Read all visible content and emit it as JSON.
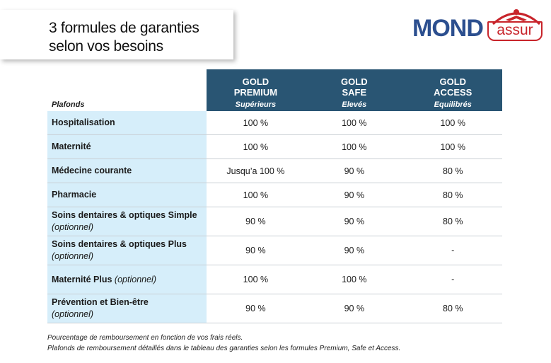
{
  "title": {
    "line1": "3 formules de garanties",
    "line2": "selon vos besoins"
  },
  "logo": {
    "part1": "MOND",
    "part2": "assur",
    "brand_blue": "#2c4f8f",
    "brand_red": "#c8242b"
  },
  "table": {
    "plafonds_label": "Plafonds",
    "columns": [
      {
        "line1": "GOLD",
        "line2": "PREMIUM",
        "level": "Supérieurs"
      },
      {
        "line1": "GOLD",
        "line2": "SAFE",
        "level": "Elevés"
      },
      {
        "line1": "GOLD",
        "line2": "ACCESS",
        "level": "Equilibrés"
      }
    ],
    "rows": [
      {
        "label": "Hospitalisation",
        "opt": "",
        "values": [
          "100 %",
          "100 %",
          "100 %"
        ]
      },
      {
        "label": "Maternité",
        "opt": "",
        "values": [
          "100 %",
          "100 %",
          "100 %"
        ]
      },
      {
        "label": "Médecine courante",
        "opt": "",
        "values": [
          "Jusqu’a 100 %",
          "90 %",
          "80 %"
        ]
      },
      {
        "label": "Pharmacie",
        "opt": "",
        "values": [
          "100 %",
          "90 %",
          "80 %"
        ]
      },
      {
        "label": "Soins dentaires & optiques Simple",
        "opt": "(optionnel)",
        "values": [
          "90 %",
          "90 %",
          "80 %"
        ]
      },
      {
        "label": "Soins dentaires & optiques Plus",
        "opt": "(optionnel)",
        "values": [
          "90 %",
          "90 %",
          "-"
        ]
      },
      {
        "label": "Maternité Plus",
        "opt": "(optionnel)",
        "values": [
          "100 %",
          "100 %",
          "-"
        ]
      },
      {
        "label": "Prévention et Bien-être",
        "opt": "(optionnel)",
        "values": [
          "90 %",
          "90 %",
          "80 %"
        ]
      }
    ],
    "header_color": "#295573",
    "label_bg": "#d6eefa"
  },
  "notes": [
    "Pourcentage de remboursement en fonction de vos frais réels.",
    "Plafonds de remboursement détaillés dans le tableau des garanties selon les formules Premium, Safe et Access."
  ]
}
